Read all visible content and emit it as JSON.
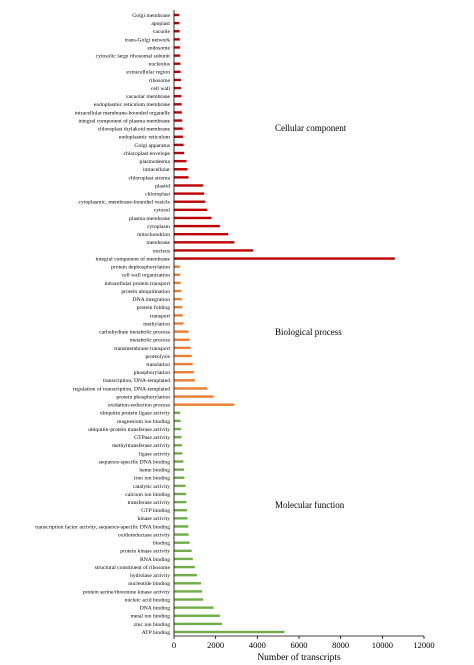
{
  "chart_data": {
    "type": "bar",
    "orientation": "horizontal",
    "xlabel": "Number of transcripts",
    "xlim": [
      0,
      12000
    ],
    "xticks": [
      0,
      2000,
      4000,
      6000,
      8000,
      10000,
      12000
    ],
    "grid": false,
    "legend": "none",
    "groups": [
      {
        "name": "Cellular component",
        "color": "#c00000",
        "categories": [
          "Golgi membrane",
          "apoplast",
          "vacuole",
          "trans-Golgi network",
          "endosome",
          "cytosolic large ribosomal subunit",
          "nucleolus",
          "extracellular region",
          "ribosome",
          "cell wall",
          "vacuolar membrane",
          "endoplasmic reticulum membrane",
          "intracellular membrane-bounded organelle",
          "integral component of plasma membrane",
          "chloroplast thylakoid membrane",
          "endoplasmic reticulum",
          "Golgi apparatus",
          "chloroplast envelope",
          "plasmodesma",
          "intracellular",
          "chloroplast stroma",
          "plastid",
          "chloroplast",
          "cytoplasmic, membrane-bounded vesicle",
          "cytosol",
          "plasma membrane",
          "cytoplasm",
          "mitochondrion",
          "membrane",
          "nucleus",
          "integral component of membrane"
        ],
        "values": [
          250,
          260,
          270,
          280,
          290,
          300,
          310,
          320,
          330,
          340,
          350,
          370,
          380,
          390,
          420,
          430,
          460,
          480,
          600,
          650,
          700,
          1400,
          1450,
          1500,
          1600,
          1800,
          2200,
          2600,
          2900,
          3800,
          10600
        ]
      },
      {
        "name": "Biological process",
        "color": "#ed7d31",
        "categories": [
          "protein dephosphorylation",
          "cell wall organization",
          "intracellular protein transport",
          "protein ubiquitination",
          "DNA integration",
          "protein folding",
          "transport",
          "methylation",
          "carbohydrate metabolic process",
          "metabolic process",
          "transmembrane transport",
          "proteolysis",
          "translation",
          "phosphorylation",
          "transcription, DNA-templated",
          "regulation of transcription, DNA-templated",
          "protein phosphorylation",
          "oxidation-reduction process"
        ],
        "values": [
          280,
          300,
          320,
          350,
          370,
          390,
          420,
          450,
          700,
          750,
          800,
          850,
          900,
          950,
          1000,
          1600,
          1900,
          2900
        ]
      },
      {
        "name": "Molecular function",
        "color": "#70ad47",
        "categories": [
          "ubiquitin protein ligase activity",
          "magnesium ion binding",
          "ubiquitin-protein transferase activity",
          "GTPase activity",
          "methyltransferase activity",
          "ligase activity",
          "sequence-specific DNA binding",
          "heme binding",
          "iron ion binding",
          "catalytic activity",
          "calcium ion binding",
          "transferase activity",
          "GTP binding",
          "kinase activity",
          "transcription factor activity, sequence-specific DNA binding",
          "oxidoreductase activity",
          "binding",
          "protein kinase activity",
          "RNA binding",
          "structural constituent of ribosome",
          "hydrolase activity",
          "nucleotide binding",
          "protein serine/threonine kinase activity",
          "nucleic acid binding",
          "DNA binding",
          "metal ion binding",
          "zinc ion binding",
          "ATP binding"
        ],
        "values": [
          300,
          320,
          340,
          360,
          380,
          400,
          450,
          480,
          500,
          550,
          580,
          600,
          620,
          650,
          680,
          700,
          750,
          850,
          900,
          1000,
          1100,
          1300,
          1350,
          1400,
          1900,
          2200,
          2300,
          5300
        ]
      }
    ]
  }
}
